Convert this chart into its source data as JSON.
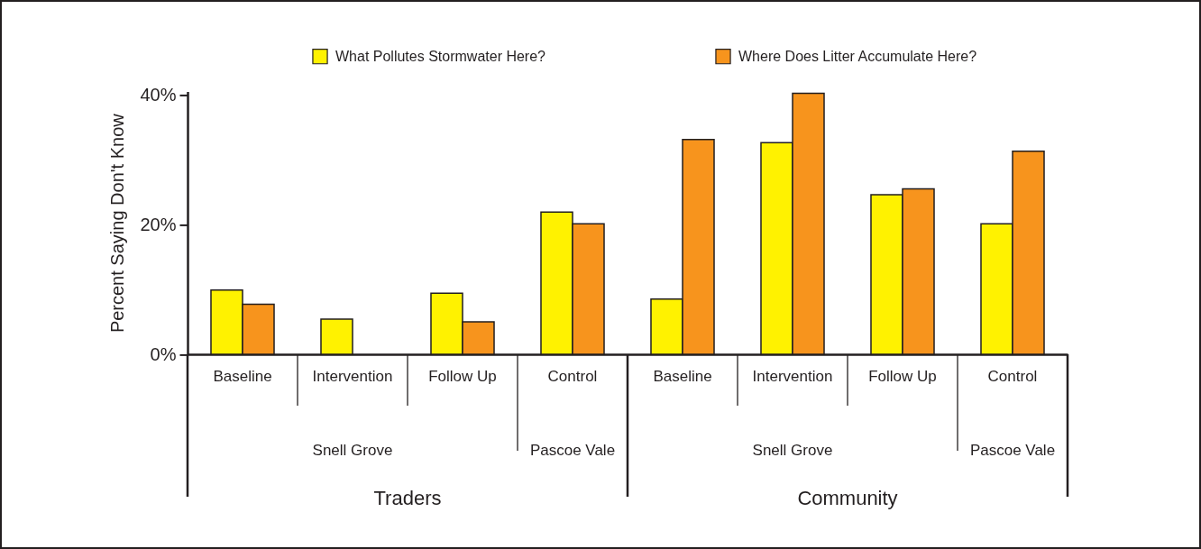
{
  "chart_data": {
    "type": "bar",
    "categories": [
      "Baseline",
      "Intervention",
      "Follow Up",
      "Control",
      "Baseline",
      "Intervention",
      "Follow Up",
      "Control"
    ],
    "series": [
      {
        "name": "What Pollutes Stormwater Here?",
        "color": "#fff200",
        "values": [
          9.9,
          5.4,
          9.4,
          21.9,
          8.5,
          32.6,
          24.6,
          20.1
        ]
      },
      {
        "name": "Where Does Litter Accumulate Here?",
        "color": "#f7941d",
        "values": [
          7.7,
          null,
          5.0,
          20.1,
          33.1,
          40.2,
          25.5,
          31.3
        ]
      }
    ],
    "ylabel": "Percent Saying Don't Know",
    "ylim": [
      0,
      40.5
    ],
    "yticks": [
      {
        "value": 0,
        "label": "0%"
      },
      {
        "value": 20,
        "label": "20%"
      },
      {
        "value": 40,
        "label": "40%"
      }
    ],
    "annotations": [
      "Snell Grove",
      "Pascoe Vale",
      "Snell Grove",
      "Pascoe Vale",
      "Traders",
      "Community"
    ],
    "grid": false,
    "legend": "top"
  }
}
